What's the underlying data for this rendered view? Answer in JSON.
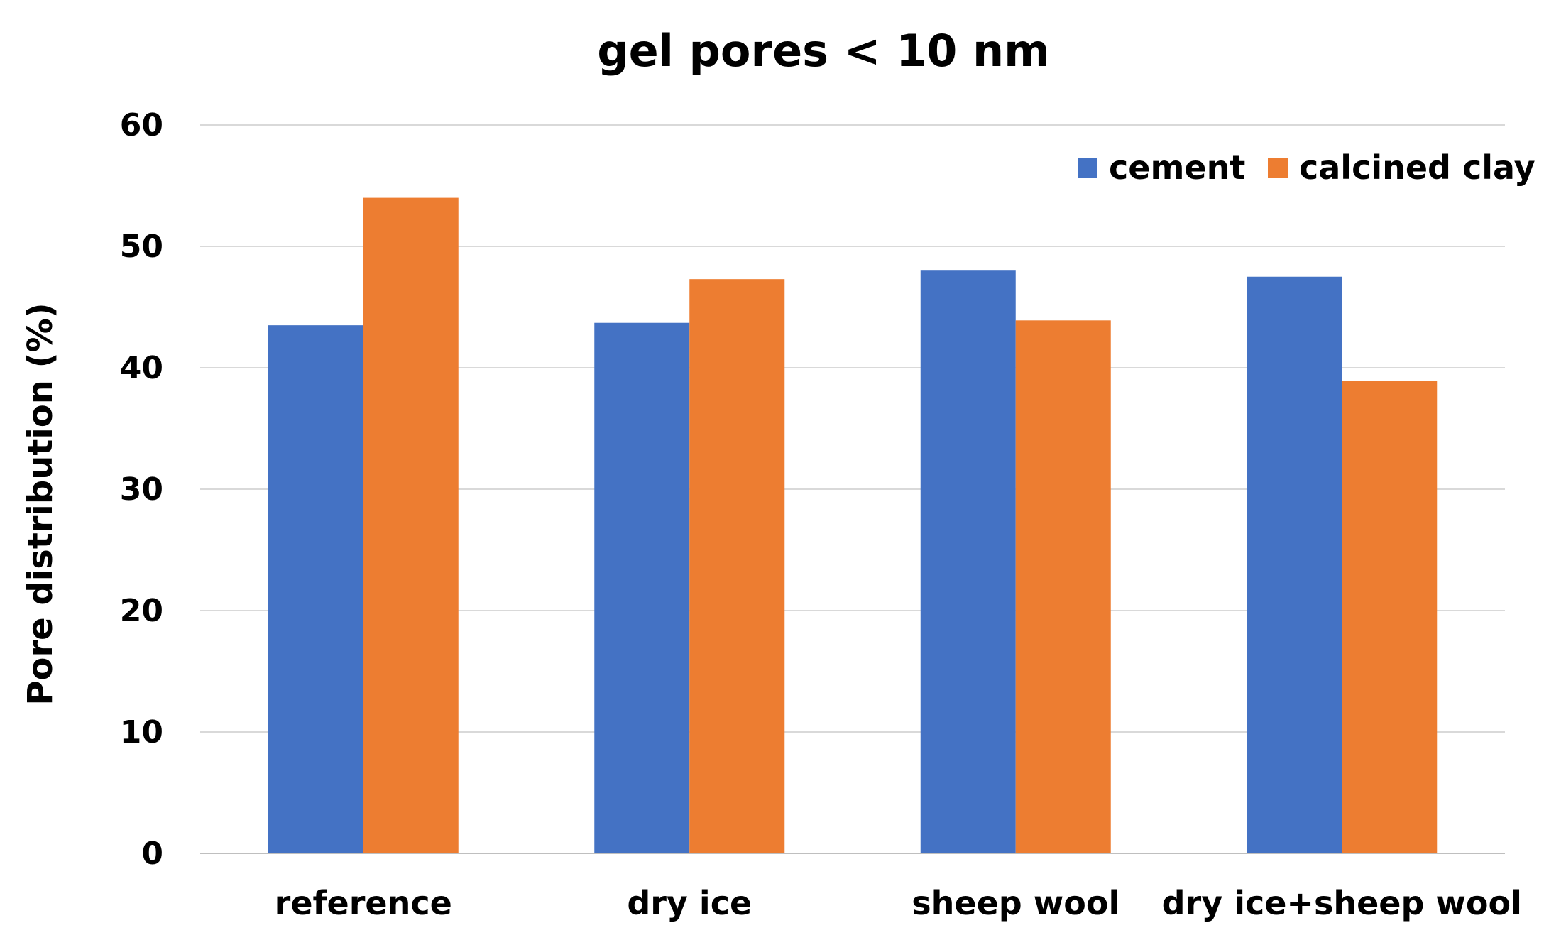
{
  "chart_data": {
    "type": "bar",
    "title": "gel pores < 10 nm",
    "xlabel": "",
    "ylabel": "Pore distribution  (%)",
    "ylim": [
      0,
      60
    ],
    "yticks": [
      0,
      10,
      20,
      30,
      40,
      50,
      60
    ],
    "grid": true,
    "legend_position": "top-right",
    "categories": [
      "reference",
      "dry ice",
      "sheep wool",
      "dry ice+sheep wool"
    ],
    "series": [
      {
        "name": "cement",
        "color": "#4472c4",
        "values": [
          43.5,
          43.7,
          48.0,
          47.5
        ]
      },
      {
        "name": "calcined clay",
        "color": "#ed7d31",
        "values": [
          54.0,
          47.3,
          43.9,
          38.9
        ]
      }
    ]
  }
}
